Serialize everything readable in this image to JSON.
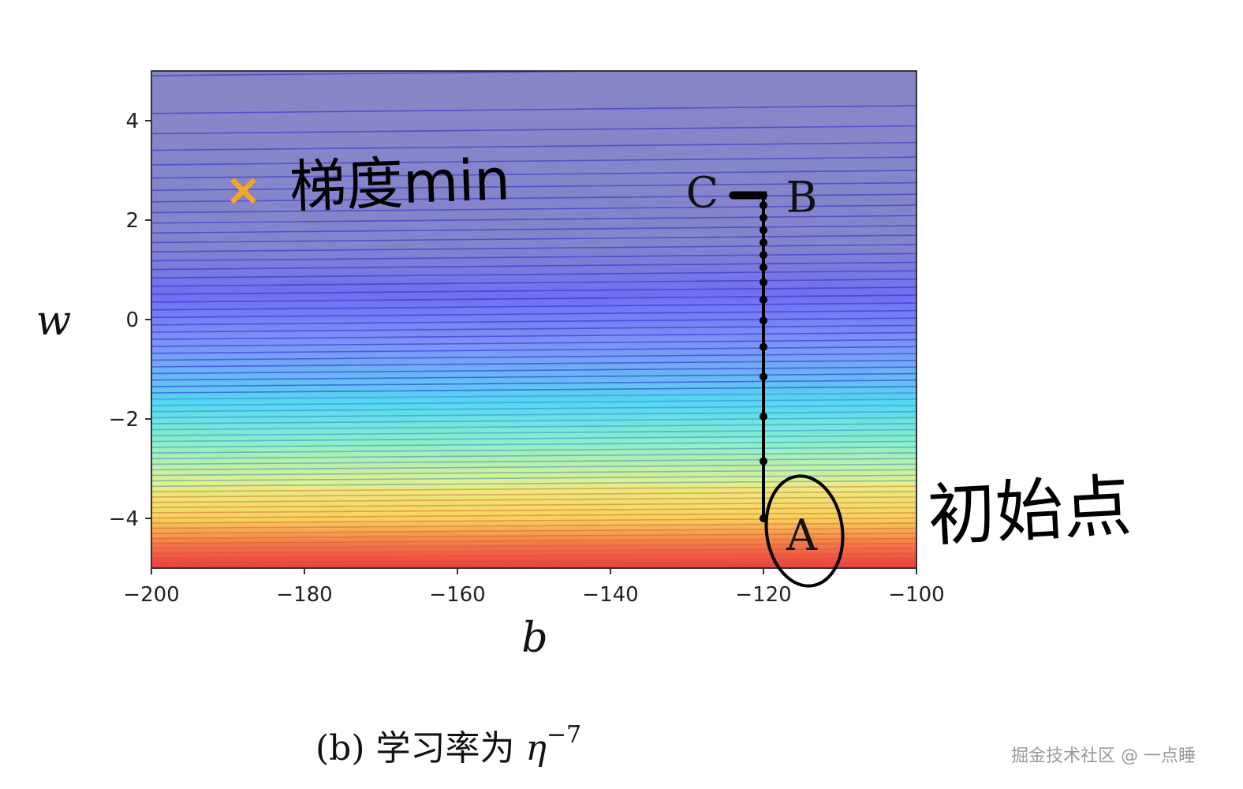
{
  "chart_data": {
    "type": "contour",
    "xlabel": "b",
    "ylabel": "w",
    "xlim": [
      -200,
      -100
    ],
    "ylim": [
      -5,
      5
    ],
    "x_ticks": [
      -200,
      -180,
      -160,
      -140,
      -120,
      -100
    ],
    "y_ticks": [
      -4,
      -2,
      0,
      2,
      4
    ],
    "x_tick_labels": [
      "−200",
      "−180",
      "−160",
      "−140",
      "−120",
      "−100"
    ],
    "y_tick_labels": [
      "−4",
      "−2",
      "0",
      "2",
      "4"
    ],
    "colormap": "jet (blue at high w, red at low w)",
    "minimum_marker": {
      "b": -188,
      "w": 2.6,
      "symbol": "×",
      "color": "#f5a623"
    },
    "path": {
      "x": [
        -120,
        -120,
        -120,
        -120,
        -120,
        -120,
        -120,
        -120,
        -120,
        -120,
        -120,
        -120,
        -120,
        -120,
        -120,
        -121,
        -122,
        -123,
        -124
      ],
      "y": [
        -4.0,
        -2.85,
        -1.95,
        -1.15,
        -0.55,
        -0.02,
        0.4,
        0.75,
        1.05,
        1.3,
        1.55,
        1.8,
        2.05,
        2.3,
        2.5,
        2.5,
        2.5,
        2.5,
        2.5
      ]
    },
    "point_labels": [
      {
        "text": "A",
        "b": -115,
        "w": -4.35
      },
      {
        "text": "B",
        "b": -115,
        "w": 2.45
      },
      {
        "text": "C",
        "b": -128,
        "w": 2.55
      }
    ]
  },
  "annotations": {
    "min_note": "梯度min",
    "start_note": "初始点"
  },
  "caption": {
    "prefix": "(b) 学习率为 ",
    "symbol": "η",
    "exponent": "−7"
  },
  "watermark": "掘金技术社区 @ 一点睡"
}
